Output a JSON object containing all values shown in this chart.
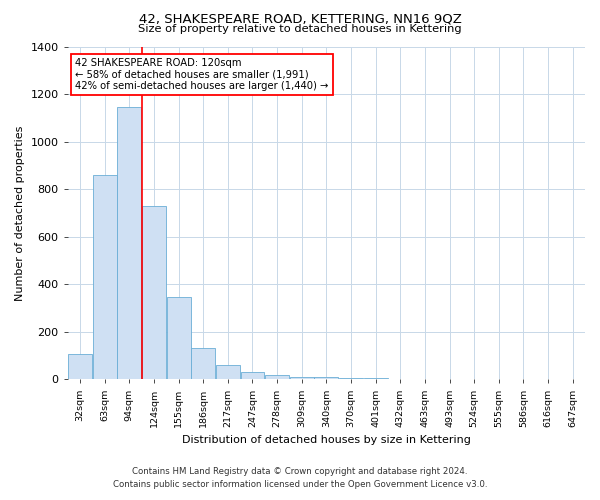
{
  "title": "42, SHAKESPEARE ROAD, KETTERING, NN16 9QZ",
  "subtitle": "Size of property relative to detached houses in Kettering",
  "xlabel": "Distribution of detached houses by size in Kettering",
  "ylabel": "Number of detached properties",
  "bin_labels": [
    "32sqm",
    "63sqm",
    "94sqm",
    "124sqm",
    "155sqm",
    "186sqm",
    "217sqm",
    "247sqm",
    "278sqm",
    "309sqm",
    "340sqm",
    "370sqm",
    "401sqm",
    "432sqm",
    "463sqm",
    "493sqm",
    "524sqm",
    "555sqm",
    "586sqm",
    "616sqm",
    "647sqm"
  ],
  "bar_values": [
    105,
    860,
    1145,
    730,
    345,
    130,
    60,
    30,
    20,
    10,
    10,
    5,
    5,
    0,
    0,
    0,
    0,
    0,
    0,
    0,
    0
  ],
  "bar_color": "#cfe0f3",
  "bar_edge_color": "#6aaed6",
  "red_line_x": 2.5,
  "annotation_line1": "42 SHAKESPEARE ROAD: 120sqm",
  "annotation_line2": "← 58% of detached houses are smaller (1,991)",
  "annotation_line3": "42% of semi-detached houses are larger (1,440) →",
  "ylim": [
    0,
    1400
  ],
  "yticks": [
    0,
    200,
    400,
    600,
    800,
    1000,
    1200,
    1400
  ],
  "footnote1": "Contains HM Land Registry data © Crown copyright and database right 2024.",
  "footnote2": "Contains public sector information licensed under the Open Government Licence v3.0.",
  "background_color": "#ffffff",
  "grid_color": "#c8d8e8"
}
